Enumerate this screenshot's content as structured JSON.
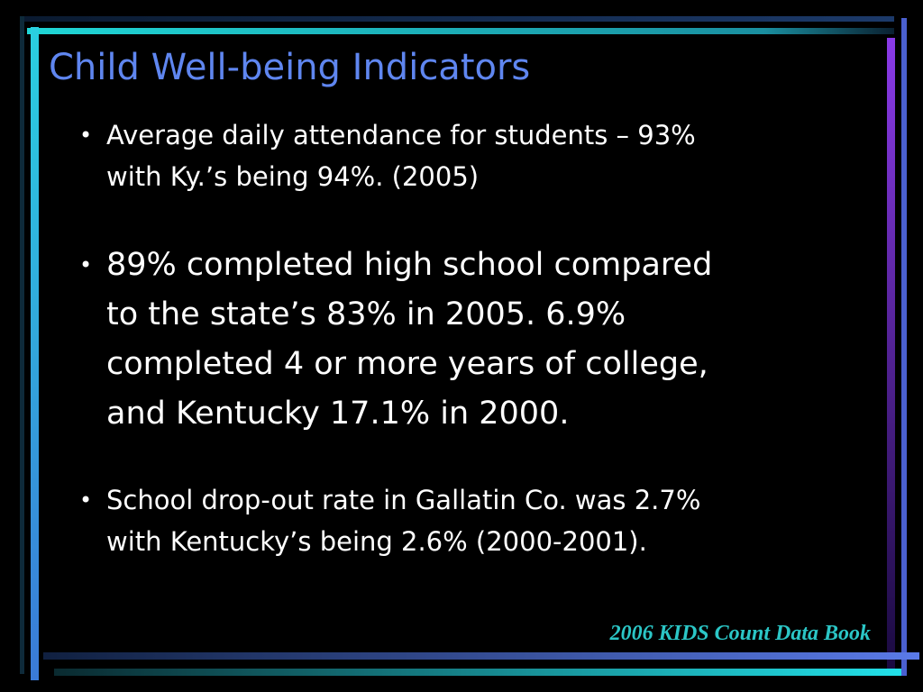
{
  "title": "Child Well-being Indicators",
  "bullets": [
    {
      "lines": [
        "Average daily attendance for students – 93%",
        "with Ky.’s being 94%. (2005)"
      ]
    },
    {
      "lines": [
        "89% completed high school compared",
        "to the state’s 83% in 2005.  6.9%",
        "completed 4 or more years of college,",
        "and Kentucky 17.1% in 2000."
      ]
    },
    {
      "lines": [
        "School drop-out rate in Gallatin Co. was 2.7%",
        "with Kentucky’s being 2.6% (2000-2001)."
      ]
    }
  ],
  "footer": "2006 KIDS Count Data Book"
}
